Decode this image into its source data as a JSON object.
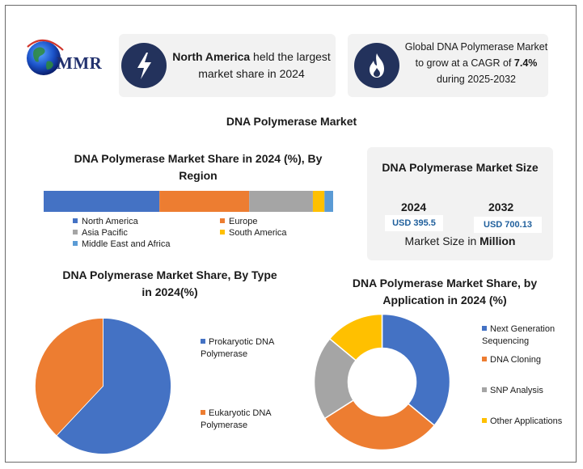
{
  "brand": {
    "logo_text": "MMR"
  },
  "highlights": [
    {
      "icon": "lightning-icon",
      "bold": "North America",
      "rest": " held the largest market share in 2024"
    },
    {
      "icon": "flame-icon",
      "line1": "Global DNA Polymerase Market to grow at a CAGR of ",
      "bold": "7.4%",
      "line2": " during 2025-2032"
    }
  ],
  "main_title": "DNA Polymerase Market",
  "colors": {
    "blue": "#4472c4",
    "orange": "#ed7d31",
    "gray": "#a5a5a5",
    "yellow": "#ffc000",
    "lightblue": "#5b9bd5",
    "navy": "#23325c"
  },
  "size_card": {
    "title": "DNA Polymerase Market Size",
    "years": [
      "2024",
      "2032"
    ],
    "values": [
      "USD 395.5",
      "USD 700.13"
    ],
    "footer_pre": "Market Size in ",
    "footer_bold": "Million"
  },
  "chart_data": [
    {
      "type": "bar",
      "stacked": true,
      "orientation": "horizontal",
      "title": "DNA Polymerase Market Share in 2024 (%), By Region",
      "categories": [
        "North America",
        "Europe",
        "Asia Pacific",
        "South America",
        "Middle East and Africa"
      ],
      "values": [
        40,
        31,
        22,
        4,
        3
      ],
      "legend": "bottom"
    },
    {
      "type": "pie",
      "title": "DNA Polymerase Market Share, By Type in 2024(%)",
      "categories": [
        "Prokaryotic DNA Polymerase",
        "Eukaryotic DNA Polymerase"
      ],
      "values": [
        62,
        38
      ],
      "legend": "right"
    },
    {
      "type": "pie",
      "donut": true,
      "title": "DNA Polymerase Market Share, by Application in 2024 (%)",
      "categories": [
        "Next Generation Sequencing",
        "DNA Cloning",
        "SNP Analysis",
        "Other Applications"
      ],
      "values": [
        36,
        30,
        20,
        14
      ],
      "legend": "right"
    }
  ]
}
